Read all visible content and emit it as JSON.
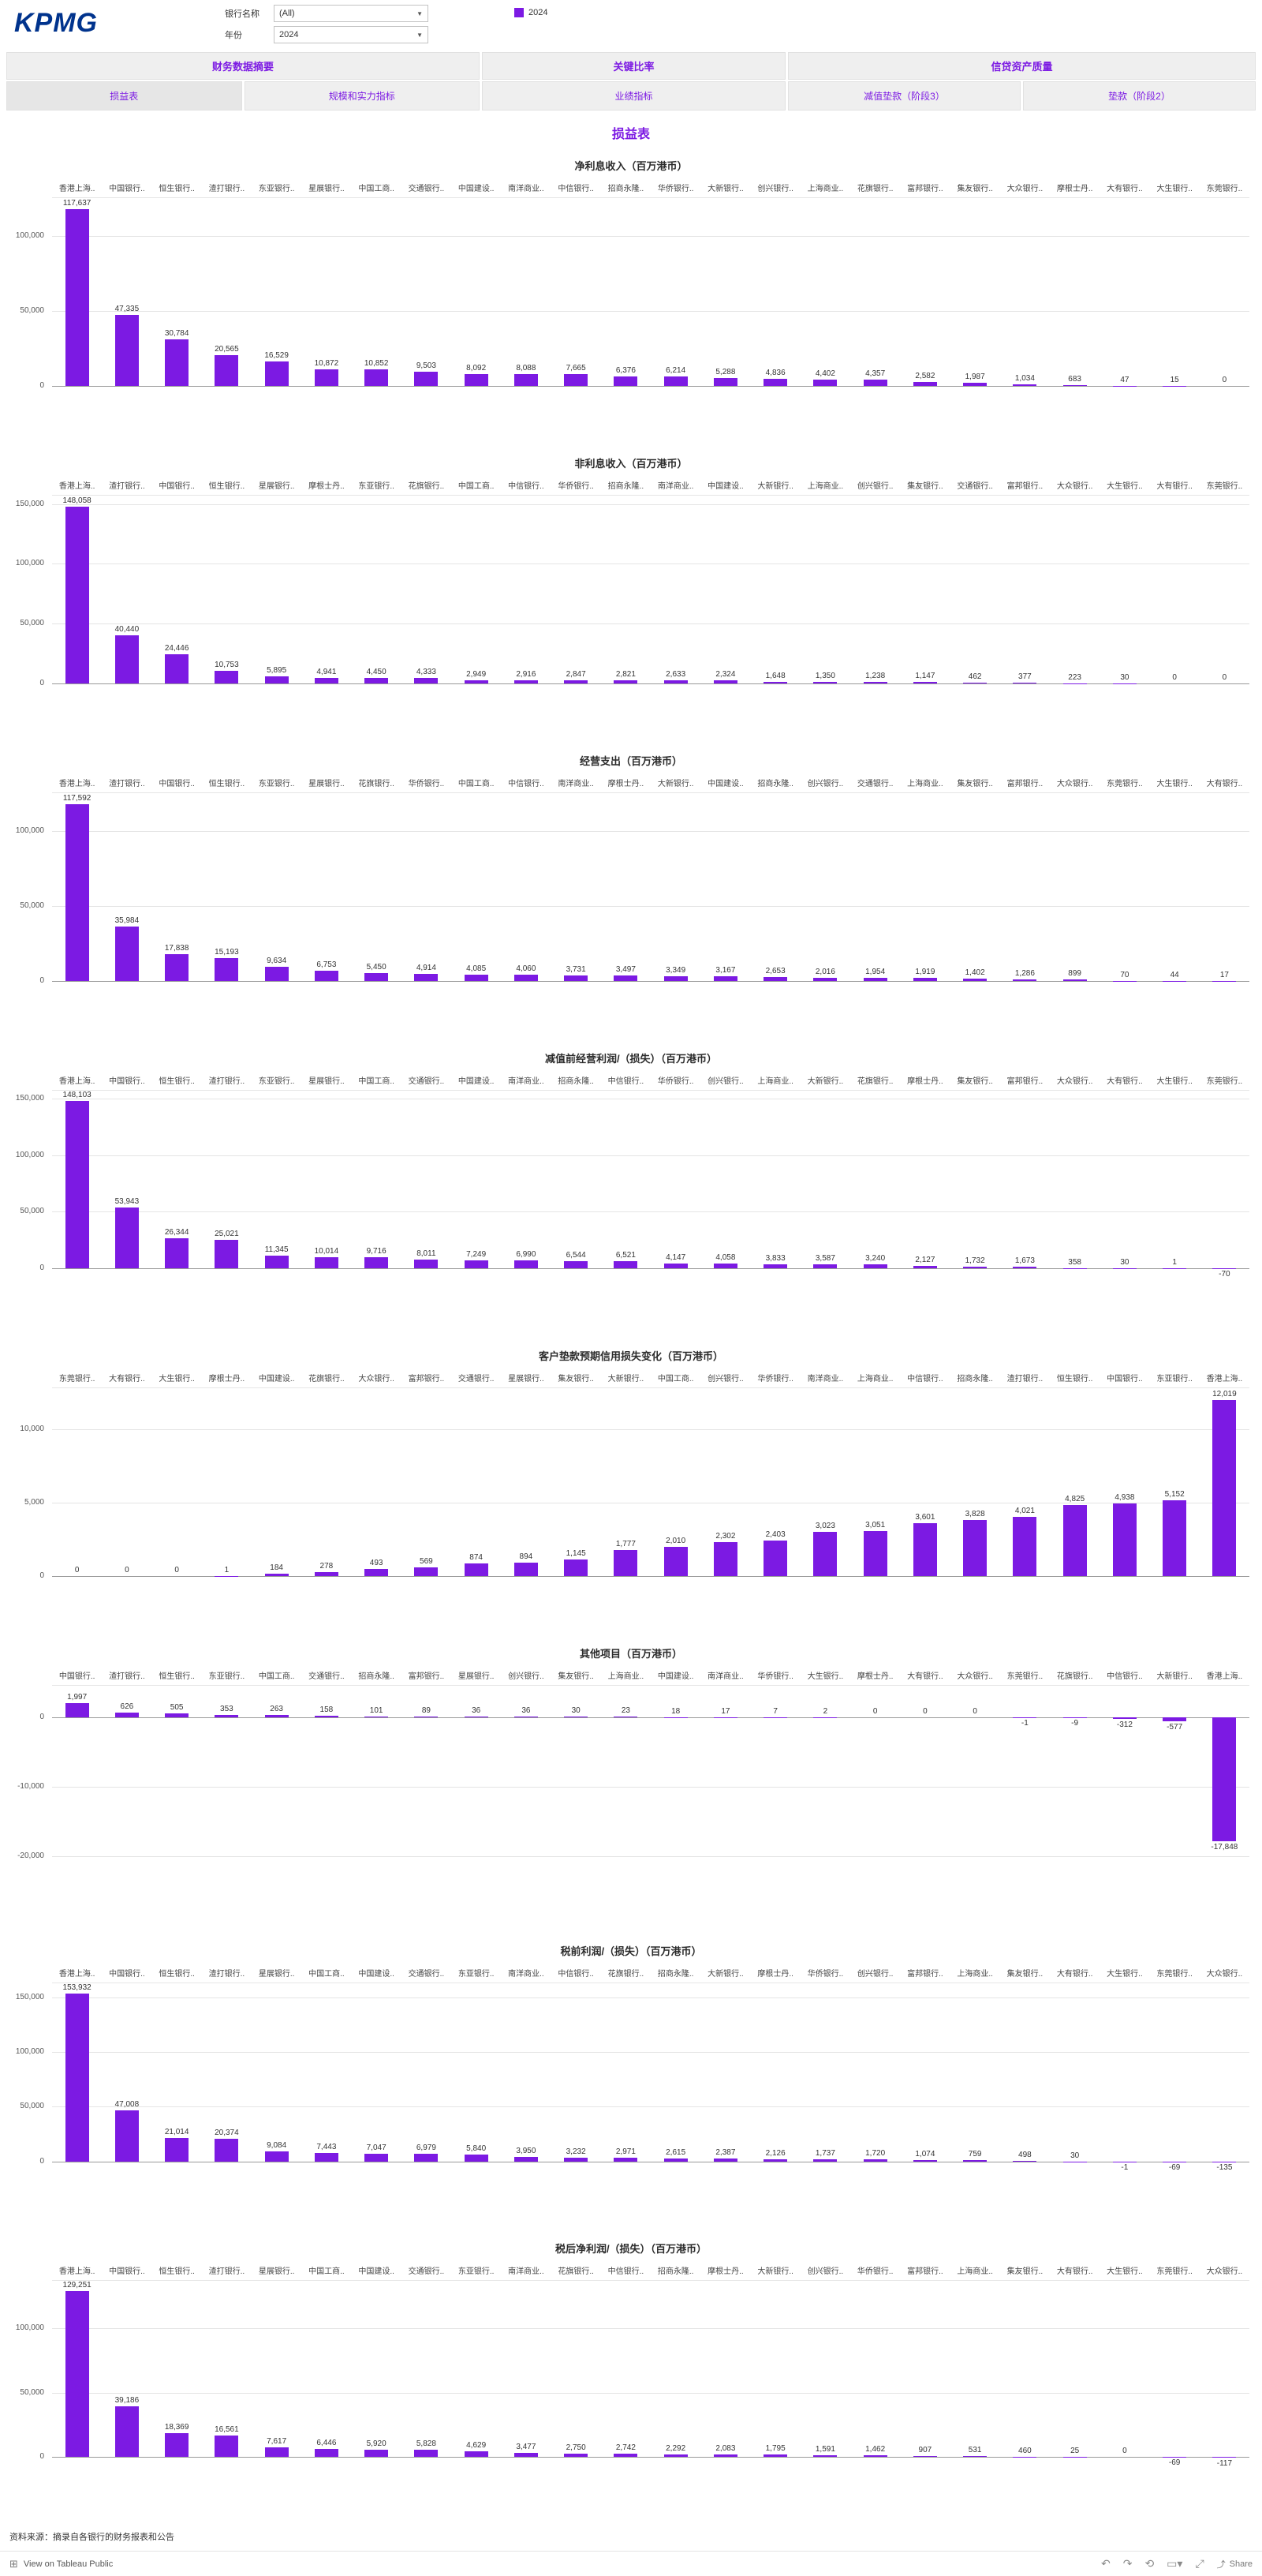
{
  "colors": {
    "accent": "#7C1AE3",
    "kpmg_blue": "#00338D"
  },
  "header": {
    "logo": "KPMG",
    "filters": [
      {
        "label": "银行名称",
        "value": "(All)"
      },
      {
        "label": "年份",
        "value": "2024"
      }
    ],
    "legend": {
      "label": "2024"
    }
  },
  "tabs": {
    "groups": [
      {
        "label": "财务数据摘要",
        "buttons": [
          "损益表",
          "规模和实力指标"
        ]
      },
      {
        "label": "关键比率",
        "buttons": [
          "业绩指标"
        ]
      },
      {
        "label": "信贷资产质量",
        "buttons": [
          "减值垫款（阶段3）",
          "垫款（阶段2）"
        ]
      }
    ],
    "active": "损益表"
  },
  "page_title": "损益表",
  "chart_data": [
    {
      "type": "bar",
      "title": "净利息收入（百万港币）",
      "categories": [
        "香港上海..",
        "中国银行..",
        "恒生银行..",
        "渣打银行..",
        "东亚银行..",
        "星展银行..",
        "中国工商..",
        "交通银行..",
        "中国建设..",
        "南洋商业..",
        "中信银行..",
        "招商永隆..",
        "华侨银行..",
        "大新银行..",
        "创兴银行..",
        "上海商业..",
        "花旗银行..",
        "富邦银行..",
        "集友银行..",
        "大众银行..",
        "摩根士丹..",
        "大有银行..",
        "大生银行..",
        "东莞银行.."
      ],
      "values": [
        117637,
        47335,
        30784,
        20565,
        16529,
        10872,
        10852,
        9503,
        8092,
        8088,
        7665,
        6376,
        6214,
        5288,
        4836,
        4402,
        4357,
        2582,
        1987,
        1034,
        683,
        47,
        15,
        0
      ],
      "ylim": [
        0,
        125000
      ],
      "ticks": [
        0,
        50000,
        100000
      ]
    },
    {
      "type": "bar",
      "title": "非利息收入（百万港币）",
      "categories": [
        "香港上海..",
        "渣打银行..",
        "中国银行..",
        "恒生银行..",
        "星展银行..",
        "摩根士丹..",
        "东亚银行..",
        "花旗银行..",
        "中国工商..",
        "中信银行..",
        "华侨银行..",
        "招商永隆..",
        "南洋商业..",
        "中国建设..",
        "大新银行..",
        "上海商业..",
        "创兴银行..",
        "集友银行..",
        "交通银行..",
        "富邦银行..",
        "大众银行..",
        "大生银行..",
        "大有银行..",
        "东莞银行.."
      ],
      "values": [
        148058,
        40440,
        24446,
        10753,
        5895,
        4941,
        4450,
        4333,
        2949,
        2916,
        2847,
        2821,
        2633,
        2324,
        1648,
        1350,
        1238,
        1147,
        462,
        377,
        223,
        30,
        0,
        0
      ],
      "ylim": [
        0,
        157000
      ],
      "ticks": [
        0,
        50000,
        100000,
        150000
      ]
    },
    {
      "type": "bar",
      "title": "经营支出（百万港币）",
      "categories": [
        "香港上海..",
        "渣打银行..",
        "中国银行..",
        "恒生银行..",
        "东亚银行..",
        "星展银行..",
        "花旗银行..",
        "华侨银行..",
        "中国工商..",
        "中信银行..",
        "南洋商业..",
        "摩根士丹..",
        "大新银行..",
        "中国建设..",
        "招商永隆..",
        "创兴银行..",
        "交通银行..",
        "上海商业..",
        "集友银行..",
        "富邦银行..",
        "大众银行..",
        "东莞银行..",
        "大生银行..",
        "大有银行.."
      ],
      "values": [
        117592,
        35984,
        17838,
        15193,
        9634,
        6753,
        5450,
        4914,
        4085,
        4060,
        3731,
        3497,
        3349,
        3167,
        2653,
        2016,
        1954,
        1919,
        1402,
        1286,
        899,
        70,
        44,
        17
      ],
      "ylim": [
        0,
        125000
      ],
      "ticks": [
        0,
        50000,
        100000
      ]
    },
    {
      "type": "bar",
      "title": "减值前经营利润/（损失）（百万港币）",
      "categories": [
        "香港上海..",
        "中国银行..",
        "恒生银行..",
        "渣打银行..",
        "东亚银行..",
        "星展银行..",
        "中国工商..",
        "交通银行..",
        "中国建设..",
        "南洋商业..",
        "招商永隆..",
        "中信银行..",
        "华侨银行..",
        "创兴银行..",
        "上海商业..",
        "大新银行..",
        "花旗银行..",
        "摩根士丹..",
        "集友银行..",
        "富邦银行..",
        "大众银行..",
        "大有银行..",
        "大生银行..",
        "东莞银行.."
      ],
      "values": [
        148103,
        53943,
        26344,
        25021,
        11345,
        10014,
        9716,
        8011,
        7249,
        6990,
        6544,
        6521,
        4147,
        4058,
        3833,
        3587,
        3240,
        2127,
        1732,
        1673,
        358,
        30,
        1,
        -70
      ],
      "ylim": [
        -9000,
        157000
      ],
      "ticks": [
        0,
        50000,
        100000,
        150000
      ]
    },
    {
      "type": "bar",
      "title": "客户垫款预期信用损失变化（百万港币）",
      "categories": [
        "东莞银行..",
        "大有银行..",
        "大生银行..",
        "摩根士丹..",
        "中国建设..",
        "花旗银行..",
        "大众银行..",
        "富邦银行..",
        "交通银行..",
        "星展银行..",
        "集友银行..",
        "大新银行..",
        "中国工商..",
        "创兴银行..",
        "华侨银行..",
        "南洋商业..",
        "上海商业..",
        "中信银行..",
        "招商永隆..",
        "渣打银行..",
        "恒生银行..",
        "中国银行..",
        "东亚银行..",
        "香港上海.."
      ],
      "values": [
        0,
        0,
        0,
        1,
        184,
        278,
        493,
        569,
        874,
        894,
        1145,
        1777,
        2010,
        2302,
        2403,
        3023,
        3051,
        3601,
        3828,
        4021,
        4825,
        4938,
        5152,
        12019
      ],
      "ylim": [
        0,
        12800
      ],
      "ticks": [
        0,
        5000,
        10000
      ]
    },
    {
      "type": "bar",
      "title": "其他项目（百万港币）",
      "categories": [
        "中国银行..",
        "渣打银行..",
        "恒生银行..",
        "东亚银行..",
        "中国工商..",
        "交通银行..",
        "招商永隆..",
        "富邦银行..",
        "星展银行..",
        "创兴银行..",
        "集友银行..",
        "上海商业..",
        "中国建设..",
        "南洋商业..",
        "华侨银行..",
        "大生银行..",
        "摩根士丹..",
        "大有银行..",
        "大众银行..",
        "东莞银行..",
        "花旗银行..",
        "中信银行..",
        "大新银行..",
        "香港上海.."
      ],
      "values": [
        1997,
        626,
        505,
        353,
        263,
        158,
        101,
        89,
        36,
        36,
        30,
        23,
        18,
        17,
        7,
        2,
        0,
        0,
        0,
        -1,
        -9,
        -312,
        -577,
        -17848
      ],
      "ylim": [
        -22500,
        4500
      ],
      "ticks": [
        0,
        -10000,
        -20000
      ]
    },
    {
      "type": "bar",
      "title": "税前利润/（损失）（百万港币）",
      "categories": [
        "香港上海..",
        "中国银行..",
        "恒生银行..",
        "渣打银行..",
        "星展银行..",
        "中国工商..",
        "中国建设..",
        "交通银行..",
        "东亚银行..",
        "南洋商业..",
        "中信银行..",
        "花旗银行..",
        "招商永隆..",
        "大新银行..",
        "摩根士丹..",
        "华侨银行..",
        "创兴银行..",
        "富邦银行..",
        "上海商业..",
        "集友银行..",
        "大有银行..",
        "大生银行..",
        "东莞银行..",
        "大众银行.."
      ],
      "values": [
        153932,
        47008,
        21014,
        20374,
        9084,
        7443,
        7047,
        6979,
        5840,
        3950,
        3232,
        2971,
        2615,
        2387,
        2126,
        1737,
        1720,
        1074,
        759,
        498,
        30,
        -1,
        -69,
        -135
      ],
      "ylim": [
        -9000,
        163000
      ],
      "ticks": [
        0,
        50000,
        100000,
        150000
      ]
    },
    {
      "type": "bar",
      "title": "税后净利润/（损失）（百万港币）",
      "categories": [
        "香港上海..",
        "中国银行..",
        "恒生银行..",
        "渣打银行..",
        "星展银行..",
        "中国工商..",
        "中国建设..",
        "交通银行..",
        "东亚银行..",
        "南洋商业..",
        "花旗银行..",
        "中信银行..",
        "招商永隆..",
        "摩根士丹..",
        "大新银行..",
        "创兴银行..",
        "华侨银行..",
        "富邦银行..",
        "上海商业..",
        "集友银行..",
        "大有银行..",
        "大生银行..",
        "东莞银行..",
        "大众银行.."
      ],
      "values": [
        129251,
        39186,
        18369,
        16561,
        7617,
        6446,
        5920,
        5828,
        4629,
        3477,
        2750,
        2742,
        2292,
        2083,
        1795,
        1591,
        1462,
        907,
        531,
        460,
        25,
        0,
        -69,
        -117
      ],
      "ylim": [
        -9000,
        137000
      ],
      "ticks": [
        0,
        50000,
        100000
      ]
    }
  ],
  "footer": {
    "source": "资料来源：摘录自各银行的财务报表和公告",
    "toolbar": {
      "view_label": "View on Tableau Public",
      "share_label": "Share"
    }
  }
}
